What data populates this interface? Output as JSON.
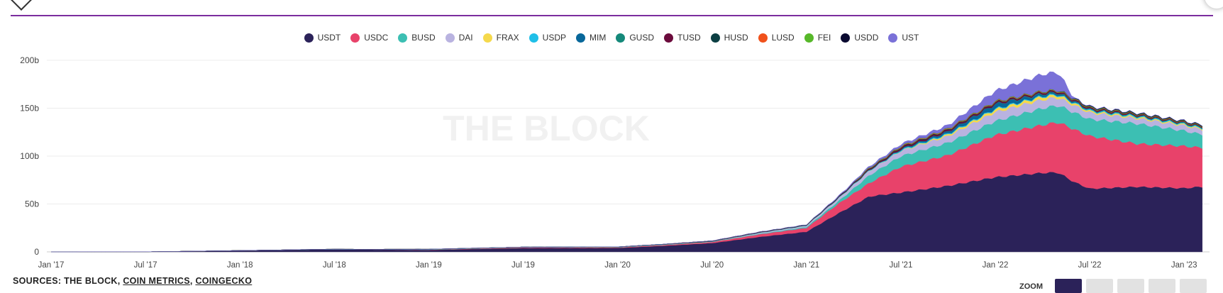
{
  "sources": {
    "prefix": "SOURCES: THE BLOCK, ",
    "links": [
      "COIN METRICS",
      "COINGECKO"
    ],
    "sep": ", "
  },
  "zoom": {
    "label": "ZOOM",
    "buttons": 5,
    "active_index": 0
  },
  "watermark": "THE BLOCK",
  "colors": {
    "accent": "#7b2d9e",
    "zoom_active": "#2b2259",
    "zoom_inactive": "#e2e2e2"
  },
  "chart_data": {
    "type": "area",
    "stacked": true,
    "title": "",
    "xlabel": "",
    "ylabel": "",
    "ylim": [
      0,
      200
    ],
    "yticks": [
      0,
      50,
      100,
      150,
      200
    ],
    "ytick_labels": [
      "0",
      "50b",
      "100b",
      "150b",
      "200b"
    ],
    "xlim": [
      "2017-01",
      "2023-02"
    ],
    "xticks": [
      "2017-01",
      "2017-07",
      "2018-01",
      "2018-07",
      "2019-01",
      "2019-07",
      "2020-01",
      "2020-07",
      "2021-01",
      "2021-07",
      "2022-01",
      "2022-07",
      "2023-01"
    ],
    "xtick_labels": [
      "Jan '17",
      "Jul '17",
      "Jan '18",
      "Jul '18",
      "Jan '19",
      "Jul '19",
      "Jan '20",
      "Jul '20",
      "Jan '21",
      "Jul '21",
      "Jan '22",
      "Jul '22",
      "Jan '23"
    ],
    "grid": true,
    "legend_position": "top-center",
    "units": "USD billions",
    "series": [
      {
        "name": "USDT",
        "color": "#2b2259",
        "points": [
          [
            "2017-01",
            0.01
          ],
          [
            "2017-07",
            0.1
          ],
          [
            "2018-01",
            1.4
          ],
          [
            "2018-07",
            2.7
          ],
          [
            "2019-01",
            2.0
          ],
          [
            "2019-07",
            4.0
          ],
          [
            "2020-01",
            4.1
          ],
          [
            "2020-04",
            6.4
          ],
          [
            "2020-07",
            9.2
          ],
          [
            "2020-10",
            15.6
          ],
          [
            "2021-01",
            21
          ],
          [
            "2021-03",
            40
          ],
          [
            "2021-05",
            58
          ],
          [
            "2021-07",
            62
          ],
          [
            "2021-10",
            69
          ],
          [
            "2022-01",
            78
          ],
          [
            "2022-04",
            82.5
          ],
          [
            "2022-05",
            83
          ],
          [
            "2022-06",
            73
          ],
          [
            "2022-07",
            66
          ],
          [
            "2022-10",
            68
          ],
          [
            "2023-01",
            66.5
          ],
          [
            "2023-02",
            68
          ]
        ]
      },
      {
        "name": "USDC",
        "color": "#e8426a",
        "points": [
          [
            "2018-10",
            0.1
          ],
          [
            "2019-01",
            0.3
          ],
          [
            "2019-07",
            0.6
          ],
          [
            "2020-01",
            0.5
          ],
          [
            "2020-07",
            1.1
          ],
          [
            "2020-10",
            2.7
          ],
          [
            "2021-01",
            4
          ],
          [
            "2021-03",
            10
          ],
          [
            "2021-05",
            14
          ],
          [
            "2021-07",
            27
          ],
          [
            "2021-10",
            32
          ],
          [
            "2022-01",
            44
          ],
          [
            "2022-04",
            50
          ],
          [
            "2022-06",
            55
          ],
          [
            "2022-07",
            55
          ],
          [
            "2022-10",
            45
          ],
          [
            "2023-01",
            44
          ],
          [
            "2023-02",
            41
          ]
        ]
      },
      {
        "name": "BUSD",
        "color": "#3cbfb3",
        "points": [
          [
            "2019-09",
            0.02
          ],
          [
            "2020-01",
            0.2
          ],
          [
            "2020-07",
            0.2
          ],
          [
            "2020-10",
            0.5
          ],
          [
            "2021-01",
            1
          ],
          [
            "2021-03",
            2.5
          ],
          [
            "2021-05",
            8
          ],
          [
            "2021-07",
            11
          ],
          [
            "2021-10",
            13
          ],
          [
            "2022-01",
            14.5
          ],
          [
            "2022-04",
            17.5
          ],
          [
            "2022-07",
            17.6
          ],
          [
            "2022-10",
            21
          ],
          [
            "2023-01",
            16
          ],
          [
            "2023-02",
            14
          ]
        ]
      },
      {
        "name": "DAI",
        "color": "#b9b3e0",
        "points": [
          [
            "2018-01",
            0.03
          ],
          [
            "2018-07",
            0.07
          ],
          [
            "2019-01",
            0.08
          ],
          [
            "2020-01",
            0.1
          ],
          [
            "2020-07",
            0.15
          ],
          [
            "2020-10",
            0.9
          ],
          [
            "2021-01",
            1.2
          ],
          [
            "2021-03",
            2.5
          ],
          [
            "2021-05",
            4.5
          ],
          [
            "2021-07",
            5.4
          ],
          [
            "2021-10",
            7
          ],
          [
            "2022-01",
            9.5
          ],
          [
            "2022-04",
            9
          ],
          [
            "2022-07",
            6.8
          ],
          [
            "2022-10",
            5.5
          ],
          [
            "2023-01",
            5.4
          ],
          [
            "2023-02",
            5.1
          ]
        ]
      },
      {
        "name": "FRAX",
        "color": "#f5d94c",
        "points": [
          [
            "2021-01",
            0.1
          ],
          [
            "2021-07",
            0.25
          ],
          [
            "2021-10",
            1.5
          ],
          [
            "2022-01",
            2.6
          ],
          [
            "2022-04",
            2.9
          ],
          [
            "2022-07",
            1.4
          ],
          [
            "2023-01",
            1.05
          ],
          [
            "2023-02",
            1.0
          ]
        ]
      },
      {
        "name": "USDP",
        "color": "#1fbfe8",
        "points": [
          [
            "2018-09",
            0.05
          ],
          [
            "2019-01",
            0.25
          ],
          [
            "2019-07",
            0.2
          ],
          [
            "2020-01",
            0.2
          ],
          [
            "2020-07",
            0.3
          ],
          [
            "2021-01",
            0.4
          ],
          [
            "2021-07",
            0.9
          ],
          [
            "2021-10",
            0.95
          ],
          [
            "2022-01",
            0.9
          ],
          [
            "2022-07",
            0.95
          ],
          [
            "2022-10",
            0.9
          ],
          [
            "2023-01",
            0.85
          ],
          [
            "2023-02",
            0.85
          ]
        ]
      },
      {
        "name": "MIM",
        "color": "#08679a",
        "points": [
          [
            "2021-06",
            0.2
          ],
          [
            "2021-10",
            2
          ],
          [
            "2022-01",
            4.5
          ],
          [
            "2022-04",
            1.8
          ],
          [
            "2022-07",
            0.4
          ],
          [
            "2023-01",
            0.08
          ],
          [
            "2023-02",
            0.08
          ]
        ]
      },
      {
        "name": "GUSD",
        "color": "#15897a",
        "points": [
          [
            "2018-10",
            0.01
          ],
          [
            "2019-01",
            0.01
          ],
          [
            "2021-01",
            0.05
          ],
          [
            "2021-07",
            0.18
          ],
          [
            "2022-01",
            0.35
          ],
          [
            "2022-04",
            0.6
          ],
          [
            "2022-07",
            0.5
          ],
          [
            "2023-01",
            0.6
          ],
          [
            "2023-02",
            0.6
          ]
        ]
      },
      {
        "name": "TUSD",
        "color": "#6b0b3c",
        "points": [
          [
            "2018-03",
            0.05
          ],
          [
            "2018-07",
            0.15
          ],
          [
            "2019-01",
            0.2
          ],
          [
            "2019-07",
            0.2
          ],
          [
            "2020-01",
            0.14
          ],
          [
            "2020-07",
            0.35
          ],
          [
            "2021-01",
            0.35
          ],
          [
            "2021-07",
            1.4
          ],
          [
            "2022-01",
            1.3
          ],
          [
            "2022-04",
            1.2
          ],
          [
            "2022-07",
            1.1
          ],
          [
            "2023-01",
            0.8
          ],
          [
            "2023-02",
            0.8
          ]
        ]
      },
      {
        "name": "HUSD",
        "color": "#0c3f43",
        "points": [
          [
            "2019-07",
            0.01
          ],
          [
            "2020-01",
            0.04
          ],
          [
            "2020-07",
            0.2
          ],
          [
            "2021-01",
            0.3
          ],
          [
            "2021-07",
            0.7
          ],
          [
            "2022-01",
            0.6
          ],
          [
            "2022-07",
            0.25
          ],
          [
            "2023-01",
            0.05
          ],
          [
            "2023-02",
            0.05
          ]
        ]
      },
      {
        "name": "LUSD",
        "color": "#f0511b",
        "points": [
          [
            "2021-04",
            0.2
          ],
          [
            "2021-07",
            0.5
          ],
          [
            "2022-01",
            0.55
          ],
          [
            "2022-07",
            0.3
          ],
          [
            "2023-01",
            0.28
          ],
          [
            "2023-02",
            0.28
          ]
        ]
      },
      {
        "name": "FEI",
        "color": "#57b82a",
        "points": [
          [
            "2021-04",
            0.5
          ],
          [
            "2021-07",
            0.5
          ],
          [
            "2022-01",
            0.55
          ],
          [
            "2022-07",
            0.55
          ],
          [
            "2023-01",
            0.4
          ],
          [
            "2023-02",
            0.4
          ]
        ]
      },
      {
        "name": "USDD",
        "color": "#0a0a30",
        "points": [
          [
            "2022-05",
            0.3
          ],
          [
            "2022-07",
            0.7
          ],
          [
            "2023-01",
            0.72
          ],
          [
            "2023-02",
            0.72
          ]
        ]
      },
      {
        "name": "UST",
        "color": "#7a71d8",
        "points": [
          [
            "2020-01",
            0.005
          ],
          [
            "2021-01",
            0.2
          ],
          [
            "2021-07",
            2
          ],
          [
            "2021-10",
            3.5
          ],
          [
            "2022-01",
            10.5
          ],
          [
            "2022-04",
            17.5
          ],
          [
            "2022-05",
            18.5
          ],
          [
            "2022-06",
            0.5
          ],
          [
            "2022-07",
            0.3
          ],
          [
            "2023-01",
            0.05
          ],
          [
            "2023-02",
            0.05
          ]
        ]
      }
    ]
  }
}
